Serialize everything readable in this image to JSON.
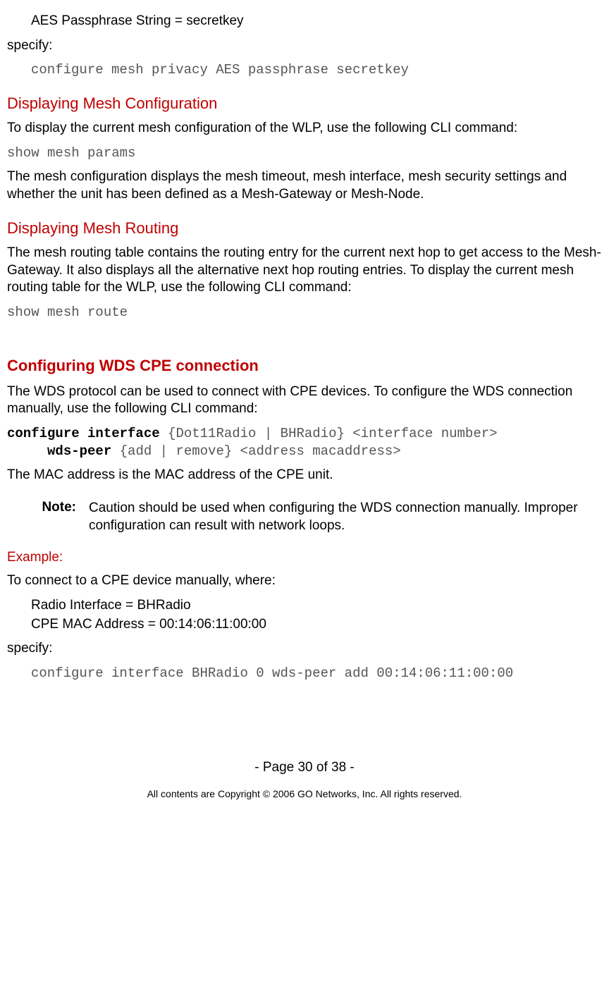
{
  "colors": {
    "heading": "#c00000",
    "body_text": "#000000",
    "mono_grey": "#555555",
    "background": "#ffffff"
  },
  "fonts": {
    "body_family": "Verdana",
    "mono_family": "Courier New",
    "h1_size_pt": 16,
    "h2_size_pt": 16,
    "body_size_pt": 14,
    "footer_small_pt": 10
  },
  "top": {
    "aes_line": "AES Passphrase String = secretkey",
    "specify": "specify:",
    "cmd": "configure mesh privacy AES passphrase secretkey"
  },
  "disp_config": {
    "heading": "Displaying Mesh Configuration",
    "p1": "To display the current mesh configuration of the WLP, use the following CLI command:",
    "cmd": "show mesh params",
    "p2": "The mesh configuration displays the mesh timeout, mesh interface, mesh security settings and whether the unit has been defined as a Mesh-Gateway or Mesh-Node."
  },
  "disp_routing": {
    "heading": "Displaying Mesh Routing",
    "p1": "The mesh routing table contains the routing entry for the current next hop to get access to the Mesh-Gateway. It also displays all the alternative next hop routing entries. To display the current mesh routing table for the WLP, use the following CLI command:",
    "cmd": "show mesh route"
  },
  "wds": {
    "heading": "Configuring WDS CPE connection",
    "p1": "The WDS protocol can be used to connect with CPE devices. To configure the WDS connection manually, use the following CLI command:",
    "cmd_bold1": "configure interface",
    "cmd_rest1": " {Dot11Radio | BHRadio} <interface number>",
    "cmd_bold2": "wds-peer",
    "cmd_rest2": " {add | remove} <address macaddress>",
    "p2": "The MAC address is the MAC address of the CPE unit."
  },
  "note": {
    "label": "Note:",
    "text": "Caution should be used when configuring the WDS connection manually. Improper configuration can result with network loops."
  },
  "example": {
    "heading": "Example:",
    "p1": "To connect to a CPE device manually, where:",
    "line1": "Radio Interface = BHRadio",
    "line2": "CPE MAC Address = 00:14:06:11:00:00",
    "specify": "specify:",
    "cmd1": "configure interface BHRadio 0 wds-peer add",
    "cmd2": "00:14:06:11:00:00"
  },
  "footer": {
    "page": "- Page 30 of 38 -",
    "copyright": "All contents are Copyright © 2006 GO Networks, Inc. All rights reserved."
  }
}
